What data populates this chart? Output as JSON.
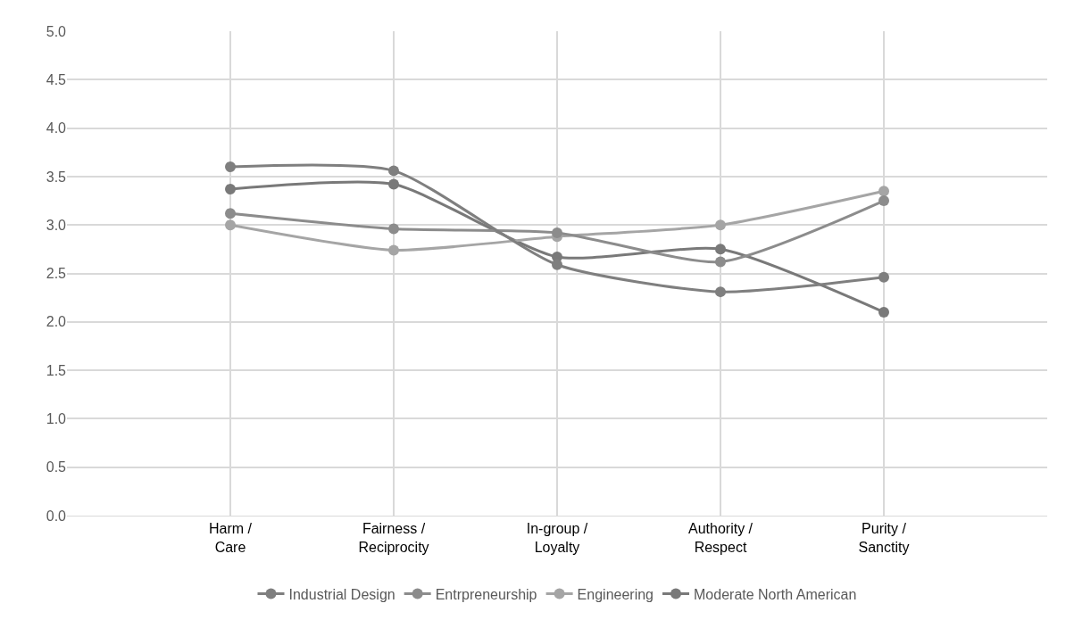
{
  "chart_data": {
    "type": "line",
    "categories": [
      "Harm /\nCare",
      "Fairness /\nReciprocity",
      "In-group /\nLoyalty",
      "Authority /\nRespect",
      "Purity /\nSanctity"
    ],
    "series": [
      {
        "name": "Industrial Design",
        "color": "#7f7f7f",
        "values": [
          3.6,
          3.56,
          2.59,
          2.31,
          2.46
        ]
      },
      {
        "name": "Entrpreneurship",
        "color": "#8c8c8c",
        "values": [
          3.12,
          2.96,
          2.92,
          2.62,
          3.25
        ]
      },
      {
        "name": "Engineering",
        "color": "#a5a5a5",
        "values": [
          3.0,
          2.74,
          2.88,
          3.0,
          3.35
        ]
      },
      {
        "name": "Moderate North American",
        "color": "#797979",
        "values": [
          3.37,
          3.42,
          2.67,
          2.75,
          2.1
        ]
      }
    ],
    "ylim": [
      0,
      5
    ],
    "yticks": [
      {
        "value": 0,
        "label": "0.0"
      },
      {
        "value": 0.5,
        "label": "0.5"
      },
      {
        "value": 1,
        "label": "1.0"
      },
      {
        "value": 1.5,
        "label": "1.5"
      },
      {
        "value": 2,
        "label": "2.0"
      },
      {
        "value": 2.5,
        "label": "2.5"
      },
      {
        "value": 3,
        "label": "3.0"
      },
      {
        "value": 3.5,
        "label": "3.5"
      },
      {
        "value": 4,
        "label": "4.0"
      },
      {
        "value": 4.5,
        "label": "4.5"
      },
      {
        "value": 5,
        "label": "5.0"
      }
    ],
    "grid": true,
    "legend": "bottom",
    "marker": "circle",
    "line_style": "solid"
  }
}
